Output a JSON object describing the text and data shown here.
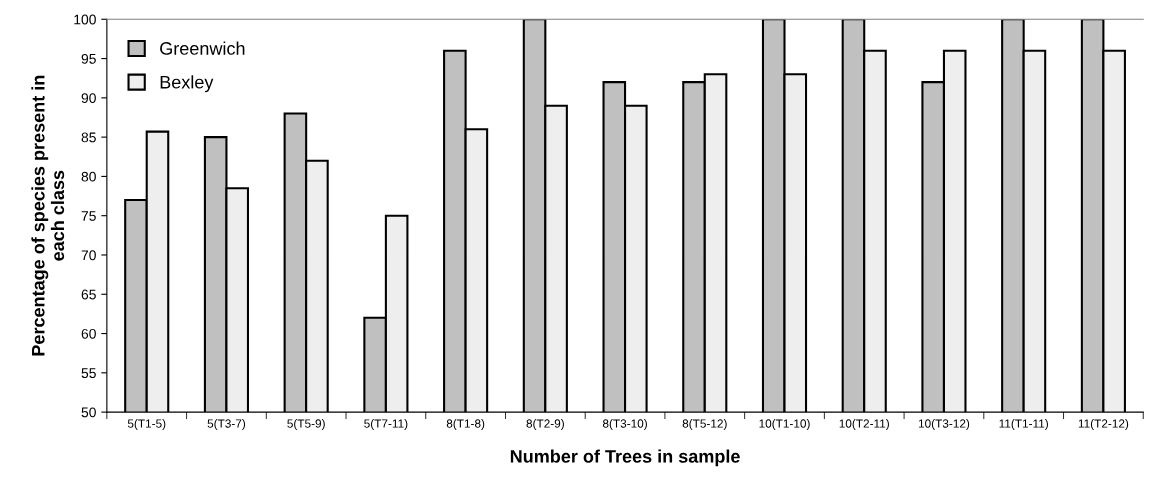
{
  "chart_data": {
    "type": "bar",
    "xlabel": "Number of Trees in sample",
    "ylabel": "Percentage of species present in\neach class",
    "categories": [
      "5(T1-5)",
      "5(T3-7)",
      "5(T5-9)",
      "5(T7-11)",
      "8(T1-8)",
      "8(T2-9)",
      "8(T3-10)",
      "8(T5-12)",
      "10(T1-10)",
      "10(T2-11)",
      "10(T3-12)",
      "11(T1-11)",
      "11(T2-12)"
    ],
    "series": [
      {
        "name": "Greenwich",
        "color": "#c0c0c0",
        "values": [
          77,
          85,
          88,
          62,
          96,
          100,
          92,
          92,
          100,
          100,
          92,
          100,
          100
        ]
      },
      {
        "name": "Bexley",
        "color": "#eeeeee",
        "values": [
          85.7,
          78.5,
          82,
          75,
          86,
          89,
          89,
          93,
          93,
          96,
          96,
          96,
          96
        ]
      }
    ],
    "ylim": [
      50,
      100
    ],
    "yticks": [
      50,
      55,
      60,
      65,
      70,
      75,
      80,
      85,
      90,
      95,
      100
    ],
    "grid": false,
    "legend": "top left"
  }
}
